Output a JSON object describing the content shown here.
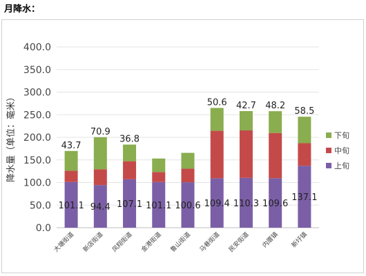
{
  "page_title": "月降水：",
  "chart_data": {
    "type": "bar",
    "stacked": true,
    "title": "",
    "ylabel": "降水量（单位：毫米）",
    "xlabel": "",
    "ylim": [
      0,
      400
    ],
    "yticks": [
      "0.0",
      "50.0",
      "100.0",
      "150.0",
      "200.0",
      "250.0",
      "300.0",
      "350.0",
      "400.0"
    ],
    "grid": true,
    "legend_position": "right",
    "categories": [
      "大塘街道",
      "新店街道",
      "凤翔街道",
      "金港街道",
      "鲁山街道",
      "马巷街道",
      "民安街道",
      "内厝镇",
      "新圩镇"
    ],
    "series": [
      {
        "name": "上旬",
        "color": "#7b5fa6",
        "values": [
          101.1,
          94.4,
          107.1,
          101.1,
          100.6,
          109.4,
          110.3,
          109.6,
          137.1
        ],
        "labels": [
          "101.1",
          "94.4",
          "107.1",
          "101.1",
          "100.6",
          "109.4",
          "110.3",
          "109.6",
          "137.1"
        ]
      },
      {
        "name": "中旬",
        "color": "#c44a4a",
        "values": [
          25,
          35,
          40,
          22,
          30,
          105,
          105,
          100,
          50
        ],
        "labels": [
          "",
          "",
          "",
          "",
          "",
          "",
          "",
          "",
          ""
        ],
        "note_estimated": true
      },
      {
        "name": "下旬",
        "color": "#8aad4f",
        "values": [
          43.7,
          70.9,
          36.8,
          30,
          35,
          50.6,
          42.7,
          48.2,
          58.5
        ],
        "labels": [
          "43.7",
          "70.9",
          "36.8",
          "",
          "",
          "50.6",
          "42.7",
          "48.2",
          "58.5"
        ]
      }
    ]
  }
}
